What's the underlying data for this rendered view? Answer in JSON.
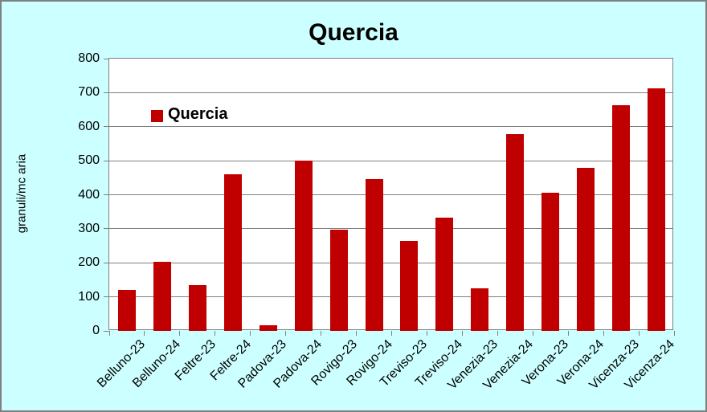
{
  "title": "Quercia",
  "y_axis_title": "granuli/mc aria",
  "legend": {
    "label": "Quercia",
    "swatch_color": "#C00000"
  },
  "colors": {
    "background": "#CCFFFF",
    "plot_background": "#FFFFFF",
    "bar": "#C00000",
    "grid": "#808080",
    "border": "#808080",
    "text": "#000000"
  },
  "chart_data": {
    "type": "bar",
    "title": "Quercia",
    "xlabel": "",
    "ylabel": "granuli/mc aria",
    "categories": [
      "Belluno-23",
      "Belluno-24",
      "Feltre-23",
      "Feltre-24",
      "Padova-23",
      "Padova-24",
      "Rovigo-23",
      "Rovigo-24",
      "Treviso-23",
      "Treviso-24",
      "Venezia-23",
      "Venezia-24",
      "Verona-23",
      "Verona-24",
      "Vicenza-23",
      "Vicenza-24"
    ],
    "series": [
      {
        "name": "Quercia",
        "color": "#C00000",
        "values": [
          121,
          203,
          134,
          460,
          17,
          500,
          297,
          446,
          264,
          332,
          124,
          578,
          406,
          479,
          663,
          712
        ]
      }
    ],
    "ylim": [
      0,
      800
    ],
    "yticks": [
      0,
      100,
      200,
      300,
      400,
      500,
      600,
      700,
      800
    ],
    "grid": true,
    "legend_position": "inside-top-left",
    "x_label_rotation_deg": 45
  }
}
